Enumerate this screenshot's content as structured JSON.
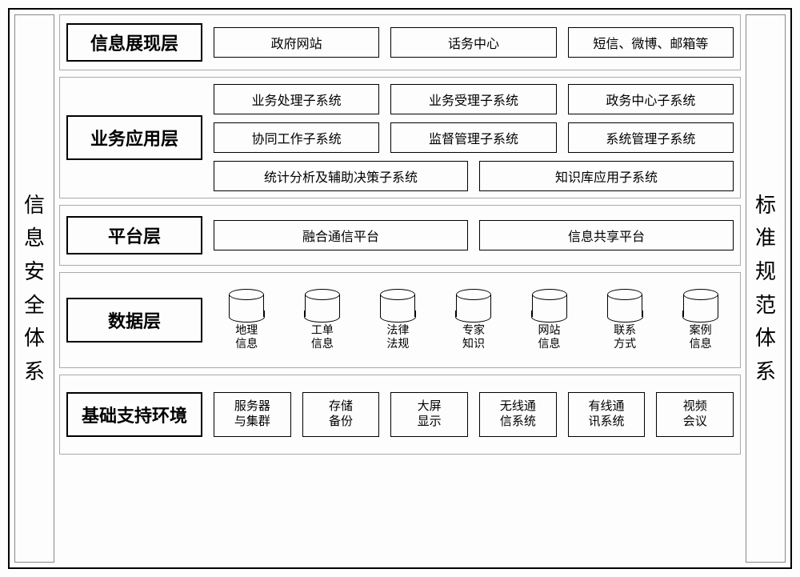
{
  "left_pillar": "信息安全体系",
  "right_pillar": "标准规范体系",
  "layers": {
    "presentation": {
      "title": "信息展现层",
      "items": [
        "政府网站",
        "话务中心",
        "短信、微博、邮箱等"
      ]
    },
    "application": {
      "title": "业务应用层",
      "row1": [
        "业务处理子系统",
        "业务受理子系统",
        "政务中心子系统"
      ],
      "row2": [
        "协同工作子系统",
        "监督管理子系统",
        "系统管理子系统"
      ],
      "row3": [
        "统计分析及辅助决策子系统",
        "知识库应用子系统"
      ]
    },
    "platform": {
      "title": "平台层",
      "items": [
        "融合通信平台",
        "信息共享平台"
      ]
    },
    "data": {
      "title": "数据层",
      "cylinders": [
        "地理\n信息",
        "工单\n信息",
        "法律\n法规",
        "专家\n知识",
        "网站\n信息",
        "联系\n方式",
        "案例\n信息"
      ]
    },
    "infra": {
      "title": "基础支持环境",
      "items": [
        "服务器\n与集群",
        "存储\n备份",
        "大屏\n显示",
        "无线通\n信系统",
        "有线通\n讯系统",
        "视频\n会议"
      ]
    }
  }
}
